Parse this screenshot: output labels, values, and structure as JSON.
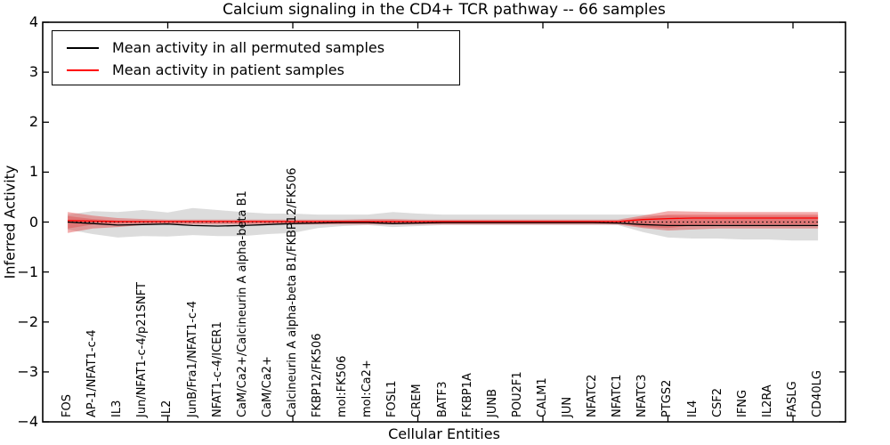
{
  "figure": {
    "title": "Calcium signaling in the CD4+ TCR pathway -- 66 samples",
    "xlabel": "Cellular Entities",
    "ylabel": "Inferred Activity"
  },
  "legend": {
    "items": [
      {
        "label": "Mean activity in all permuted samples",
        "color": "#000000"
      },
      {
        "label": "Mean activity in patient samples",
        "color": "#ff0000"
      }
    ]
  },
  "chart_data": {
    "type": "line",
    "title": "Calcium signaling in the CD4+ TCR pathway -- 66 samples",
    "xlabel": "Cellular Entities",
    "ylabel": "Inferred Activity",
    "grid": false,
    "legend_position": "upper left",
    "xlim": [
      0,
      32.1
    ],
    "ylim": [
      -4,
      4
    ],
    "yticks": [
      4,
      3,
      2,
      1,
      0,
      -1,
      -2,
      -3,
      -4
    ],
    "ytick_labels": [
      "4",
      "3",
      "2",
      "1",
      "0",
      "−1",
      "−2",
      "−3",
      "−4"
    ],
    "secondary_xticks": [
      5,
      10,
      15,
      20,
      25,
      30
    ],
    "zero_reference_line": {
      "y": 0,
      "style": "dotted",
      "color": "#000000"
    },
    "categories": [
      "FOS",
      "AP-1/NFAT1-c-4",
      "IL3",
      "Jun/NFAT1-c-4/p21SNFT",
      "IL2",
      "JunB/Fra1/NFAT1-c-4",
      "NFAT1-c-4/ICER1",
      "CaM/Ca2+/Calcineurin A alpha-beta B1",
      "CaM/Ca2+",
      "Calcineurin A alpha-beta B1/FKBP12/FK506",
      "FKBP12/FK506",
      "mol:FK506",
      "mol:Ca2+",
      "FOSL1",
      "CREM",
      "BATF3",
      "FKBP1A",
      "JUNB",
      "POU2F1",
      "CALM1",
      "JUN",
      "NFATC2",
      "NFATC1",
      "NFATC3",
      "PTGS2",
      "IL4",
      "CSF2",
      "IFNG",
      "IL2RA",
      "FASLG",
      "CD40LG"
    ],
    "series": [
      {
        "name": "Mean activity in all permuted samples",
        "color": "#000000",
        "band_color": "#dcdcdc",
        "values": [
          0.0,
          -0.03,
          -0.06,
          -0.05,
          -0.04,
          -0.07,
          -0.08,
          -0.07,
          -0.05,
          -0.03,
          -0.02,
          -0.01,
          -0.01,
          -0.03,
          -0.02,
          -0.01,
          -0.01,
          -0.01,
          -0.01,
          -0.01,
          -0.01,
          -0.01,
          -0.02,
          -0.05,
          -0.07,
          -0.07,
          -0.07,
          -0.07,
          -0.07,
          -0.07,
          -0.07
        ],
        "band_upper": [
          0.15,
          0.22,
          0.2,
          0.24,
          0.19,
          0.28,
          0.24,
          0.2,
          0.17,
          0.17,
          0.15,
          0.15,
          0.15,
          0.2,
          0.17,
          0.15,
          0.15,
          0.15,
          0.15,
          0.15,
          0.15,
          0.15,
          0.15,
          0.15,
          0.13,
          0.12,
          0.12,
          0.12,
          0.12,
          0.12,
          0.12
        ],
        "band_lower": [
          -0.15,
          -0.24,
          -0.31,
          -0.28,
          -0.29,
          -0.26,
          -0.28,
          -0.28,
          -0.24,
          -0.22,
          -0.12,
          -0.08,
          -0.06,
          -0.1,
          -0.08,
          -0.06,
          -0.06,
          -0.06,
          -0.06,
          -0.06,
          -0.06,
          -0.06,
          -0.06,
          -0.2,
          -0.31,
          -0.33,
          -0.33,
          -0.35,
          -0.35,
          -0.37,
          -0.37
        ]
      },
      {
        "name": "Mean activity in patient samples",
        "color": "#ff0000",
        "band_color": "#e03a3a",
        "values": [
          0.03,
          0.02,
          0.01,
          0.01,
          0.01,
          0.01,
          0.01,
          0.01,
          0.01,
          0.01,
          0.01,
          0.01,
          0.01,
          0.01,
          0.01,
          0.01,
          0.01,
          0.01,
          0.01,
          0.01,
          0.01,
          0.01,
          0.01,
          0.05,
          0.07,
          0.08,
          0.08,
          0.08,
          0.08,
          0.08,
          0.08
        ],
        "band_upper": [
          0.2,
          0.13,
          0.08,
          0.06,
          0.05,
          0.05,
          0.05,
          0.05,
          0.05,
          0.05,
          0.05,
          0.05,
          0.06,
          0.06,
          0.05,
          0.05,
          0.05,
          0.05,
          0.05,
          0.05,
          0.05,
          0.05,
          0.05,
          0.13,
          0.22,
          0.21,
          0.2,
          0.2,
          0.2,
          0.2,
          0.2
        ],
        "band_lower": [
          -0.22,
          -0.13,
          -0.1,
          -0.06,
          -0.05,
          -0.05,
          -0.05,
          -0.05,
          -0.05,
          -0.05,
          -0.05,
          -0.05,
          -0.05,
          -0.05,
          -0.05,
          -0.05,
          -0.05,
          -0.05,
          -0.05,
          -0.05,
          -0.05,
          -0.05,
          -0.05,
          -0.12,
          -0.17,
          -0.15,
          -0.13,
          -0.13,
          -0.13,
          -0.13,
          -0.13
        ],
        "inner_band_upper": [
          0.12,
          0.06,
          0.03,
          0.02,
          0.02,
          0.02,
          0.02,
          0.02,
          0.02,
          0.02,
          0.02,
          0.02,
          0.03,
          0.03,
          0.02,
          0.02,
          0.02,
          0.02,
          0.02,
          0.02,
          0.02,
          0.02,
          0.02,
          0.09,
          0.15,
          0.15,
          0.15,
          0.15,
          0.15,
          0.15,
          0.15
        ],
        "inner_band_lower": [
          -0.13,
          -0.05,
          -0.03,
          -0.02,
          -0.02,
          -0.02,
          -0.02,
          -0.02,
          -0.02,
          -0.02,
          -0.02,
          -0.02,
          -0.02,
          -0.02,
          -0.02,
          -0.02,
          -0.02,
          -0.02,
          -0.02,
          -0.02,
          -0.02,
          -0.02,
          -0.02,
          -0.1,
          -0.12,
          -0.07,
          -0.05,
          -0.05,
          -0.05,
          -0.05,
          -0.05
        ]
      }
    ]
  }
}
